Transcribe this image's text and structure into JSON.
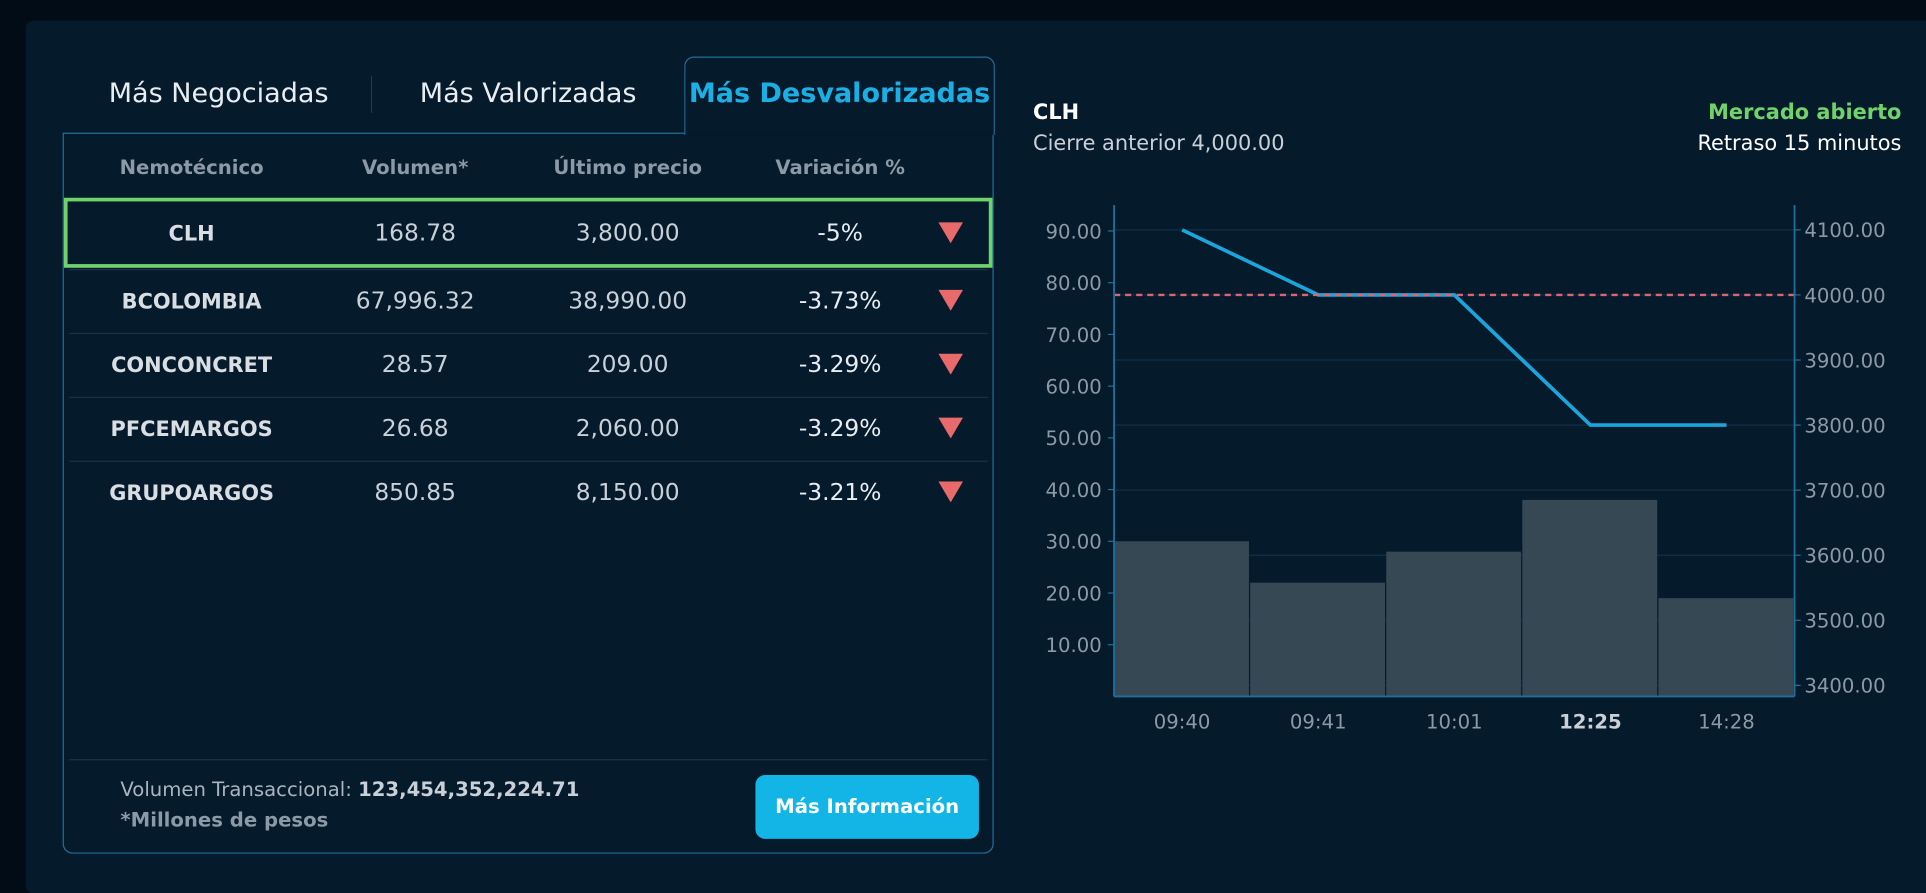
{
  "tabs": [
    "Más Negociadas",
    "Más Valorizadas",
    "Más Desvalorizadas"
  ],
  "table": {
    "header": [
      "Nemotécnico",
      "Volumen*",
      "Último precio",
      "Variación %"
    ],
    "rows": [
      [
        "CLH",
        "168.78",
        "3,800.00",
        "-5%"
      ],
      [
        "BCOLOMBIA",
        "67,996.32",
        "38,990.00",
        "-3.73%"
      ],
      [
        "CONCONCRET",
        "28.57",
        "209.00",
        "-3.29%"
      ],
      [
        "PFCEMARGOS",
        "26.68",
        "2,060.00",
        "-3.29%"
      ],
      [
        "GRUPOARGOS",
        "850.85",
        "8,150.00",
        "-3.21%"
      ]
    ]
  },
  "footer": {
    "volume_label": "Volumen Transaccional:",
    "volume_value": "123,454,352,224.71",
    "note": "*Millones de pesos",
    "button": "Más Información"
  },
  "chart_data": {
    "type": "combo",
    "ticker": "CLH",
    "previous_close_label": "Cierre anterior 4,000.00",
    "market_status": "Mercado abierto",
    "delay": "Retraso 15 minutos",
    "categories": [
      "09:40",
      "09:41",
      "10:01",
      "12:25",
      "14:28"
    ],
    "bold_category": 3,
    "series": [
      {
        "type": "bar",
        "color": "#354854",
        "values": [
          30,
          22,
          28,
          38,
          19
        ]
      },
      {
        "type": "line",
        "color": "#1aa6dc",
        "axis": "y2",
        "values": [
          4100,
          4000,
          4000,
          3800,
          3800
        ]
      }
    ],
    "reference_line": {
      "value": 4000,
      "axis": "y2",
      "color": "#e06470"
    },
    "ylim": [
      0,
      95
    ],
    "yticks": [
      {
        "value": 10,
        "label": "10.00"
      },
      {
        "value": 20,
        "label": "20.00"
      },
      {
        "value": 30,
        "label": "30.00"
      },
      {
        "value": 40,
        "label": "40.00"
      },
      {
        "value": 50,
        "label": "50.00"
      },
      {
        "value": 60,
        "label": "60.00"
      },
      {
        "value": 70,
        "label": "70.00"
      },
      {
        "value": 80,
        "label": "80.00"
      },
      {
        "value": 90,
        "label": "90.00"
      }
    ],
    "y2lim": [
      3383,
      4138
    ],
    "y2ticks": [
      {
        "value": 3400,
        "label": "3400.00"
      },
      {
        "value": 3500,
        "label": "3500.00"
      },
      {
        "value": 3600,
        "label": "3600.00"
      },
      {
        "value": 3700,
        "label": "3700.00"
      },
      {
        "value": 3800,
        "label": "3800.00"
      },
      {
        "value": 3900,
        "label": "3900.00"
      },
      {
        "value": 4000,
        "label": "4000.00"
      },
      {
        "value": 4100,
        "label": "4100.00"
      }
    ],
    "grid": true
  }
}
